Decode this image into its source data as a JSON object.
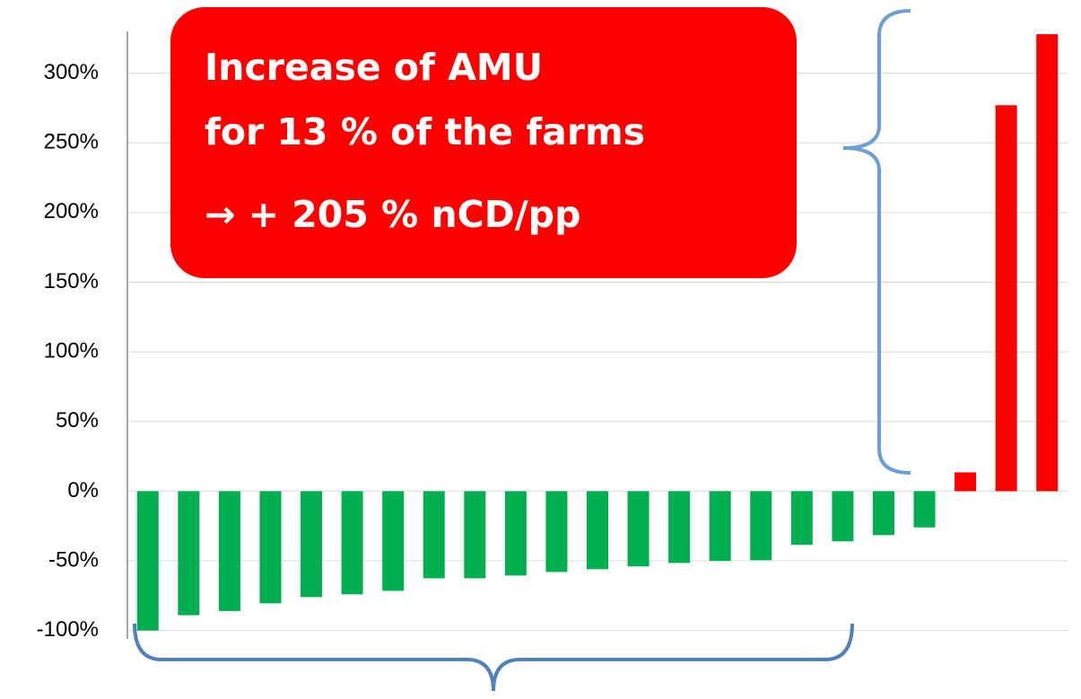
{
  "chart_data": {
    "type": "bar",
    "annotations": [
      "Increase of AMU",
      "for 13 % of the farms",
      "→ + 205 % nCD/pp"
    ],
    "categories": [
      null,
      null,
      null,
      null,
      null,
      null,
      null,
      null,
      null,
      null,
      null,
      null,
      null,
      null,
      null,
      null,
      null,
      null,
      null,
      null,
      null,
      null,
      null
    ],
    "values": [
      -100,
      -89,
      -86,
      -80.5,
      -76,
      -74,
      -71.5,
      -62.5,
      -62.5,
      -60.5,
      -58,
      -56,
      -54,
      -51.5,
      -50,
      -49.5,
      -38.5,
      -36,
      -31.5,
      -26,
      13.5,
      277,
      328
    ],
    "colors": [
      "#00b050",
      "#00b050",
      "#00b050",
      "#00b050",
      "#00b050",
      "#00b050",
      "#00b050",
      "#00b050",
      "#00b050",
      "#00b050",
      "#00b050",
      "#00b050",
      "#00b050",
      "#00b050",
      "#00b050",
      "#00b050",
      "#00b050",
      "#00b050",
      "#00b050",
      "#00b050",
      "#ff0000",
      "#ff0000",
      "#ff0000"
    ],
    "ylim": [
      -106,
      330
    ],
    "yticks": [
      {
        "value": -100,
        "label": "-100%"
      },
      {
        "value": -50,
        "label": "-50%"
      },
      {
        "value": 0,
        "label": "0%"
      },
      {
        "value": 50,
        "label": "50%"
      },
      {
        "value": 100,
        "label": "100%"
      },
      {
        "value": 150,
        "label": "150%"
      },
      {
        "value": 200,
        "label": "200%"
      },
      {
        "value": 250,
        "label": "250%"
      },
      {
        "value": 300,
        "label": "300%"
      }
    ],
    "grid": true
  }
}
